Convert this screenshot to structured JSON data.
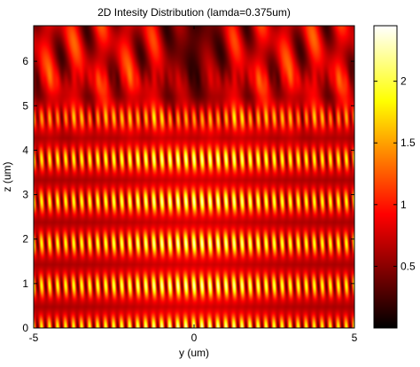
{
  "chart_data": {
    "type": "heatmap",
    "title": "2D Intesity Distribution (lamda=0.375um)",
    "xlabel": "y (um)",
    "ylabel": "z (um)",
    "xlim": [
      -5,
      5
    ],
    "ylim": [
      0,
      6.8
    ],
    "x_ticks": [
      -5,
      0,
      5
    ],
    "y_ticks": [
      0,
      1,
      2,
      3,
      4,
      5,
      6
    ],
    "colormap": "hot",
    "colorbar": {
      "range": [
        0,
        2.45
      ],
      "ticks": [
        0.5,
        1,
        1.5,
        2
      ]
    },
    "pattern": {
      "fringe_period_y_um": 0.5,
      "fringe_bright_at_y": 0,
      "talbot_period_z_um": 0.95,
      "fringes_fade_above_z_um": 5,
      "peak_intensity": 2.45
    }
  }
}
